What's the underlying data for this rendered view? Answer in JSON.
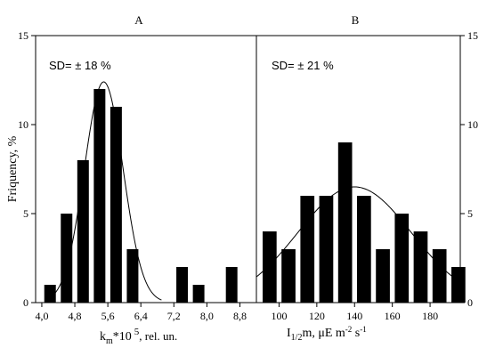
{
  "chart_data": [
    {
      "type": "bar",
      "panel": "A",
      "title": "A",
      "annotation": "SD= ± 18 %",
      "ylabel": "Friquency, %",
      "xlabel_main": "k",
      "xlabel_sub": "m",
      "xlabel_rest": "*10",
      "xlabel_sup": "5",
      "xlabel_tail": ", rel. un.",
      "xlim": [
        3.85,
        9.2
      ],
      "ylim": [
        0,
        15
      ],
      "y_ticks": [
        0,
        5,
        10,
        15
      ],
      "x_ticks": [
        4.0,
        4.8,
        5.6,
        6.4,
        7.2,
        8.0,
        8.8
      ],
      "x_tick_labels": [
        "4,0",
        "4,8",
        "5,6",
        "6,4",
        "7,2",
        "8,0",
        "8,8"
      ],
      "bar_width": 0.28,
      "bars": [
        {
          "x": 4.2,
          "y": 1
        },
        {
          "x": 4.6,
          "y": 5
        },
        {
          "x": 5.0,
          "y": 8
        },
        {
          "x": 5.4,
          "y": 12
        },
        {
          "x": 5.8,
          "y": 11
        },
        {
          "x": 6.2,
          "y": 3
        },
        {
          "x": 7.4,
          "y": 2
        },
        {
          "x": 7.8,
          "y": 1
        },
        {
          "x": 8.6,
          "y": 2
        }
      ],
      "fit": {
        "type": "gaussian",
        "mean": 5.5,
        "sd": 0.47,
        "peak": 12.4,
        "from": 4.2,
        "to": 6.9
      }
    },
    {
      "type": "bar",
      "panel": "B",
      "title": "B",
      "annotation": "SD= ± 21 %",
      "xlabel_main": "I",
      "xlabel_sub": "1/2",
      "xlabel_rest": "m, μE m",
      "xlabel_sup": "-2",
      "xlabel_rest2": " s",
      "xlabel_sup2": "-1",
      "xlim": [
        88,
        196
      ],
      "ylim": [
        0,
        15
      ],
      "y_ticks": [
        0,
        5,
        10,
        15
      ],
      "x_ticks": [
        100,
        120,
        140,
        160,
        180
      ],
      "x_tick_labels": [
        "100",
        "120",
        "140",
        "160",
        "180"
      ],
      "bar_width": 7.4,
      "bars": [
        {
          "x": 95,
          "y": 4
        },
        {
          "x": 105,
          "y": 3
        },
        {
          "x": 115,
          "y": 6
        },
        {
          "x": 125,
          "y": 6
        },
        {
          "x": 135,
          "y": 9
        },
        {
          "x": 145,
          "y": 6
        },
        {
          "x": 155,
          "y": 3
        },
        {
          "x": 165,
          "y": 5
        },
        {
          "x": 175,
          "y": 4
        },
        {
          "x": 185,
          "y": 3
        },
        {
          "x": 195,
          "y": 2
        }
      ],
      "fit": {
        "type": "gaussian",
        "mean": 140,
        "sd": 30,
        "peak": 6.5,
        "from": 88,
        "to": 196
      }
    }
  ]
}
